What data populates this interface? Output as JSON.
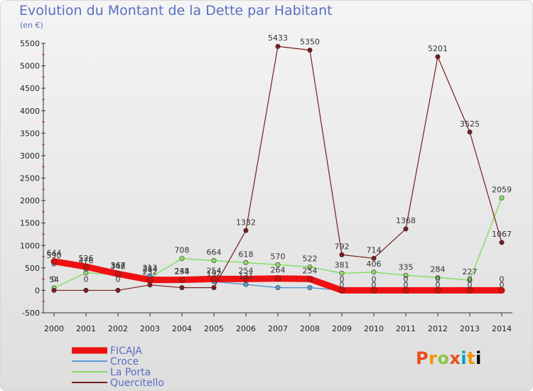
{
  "header": {
    "title": "Evolution du Montant de la Dette par Habitant",
    "subtitle": "(en €)"
  },
  "logo": {
    "text": "Proxiti"
  },
  "chart_data": {
    "type": "line",
    "title": "Evolution du Montant de la Dette par Habitant",
    "subtitle": "(en €)",
    "x": [
      "2000",
      "2001",
      "2002",
      "2003",
      "2004",
      "2005",
      "2006",
      "2007",
      "2008",
      "2009",
      "2010",
      "2011",
      "2012",
      "2013",
      "2014"
    ],
    "ylim": [
      -500,
      5500
    ],
    "yticks": [
      -500,
      0,
      500,
      1000,
      1500,
      2000,
      2500,
      3000,
      3500,
      4000,
      4500,
      5000,
      5500
    ],
    "ytick_labels": [
      "-500",
      "0",
      "500",
      "1000",
      "1500",
      "2000",
      "2500",
      "3000",
      "3500",
      "4000",
      "4500",
      "5000",
      "5500"
    ],
    "grid": false,
    "legend_position": "bottom-left",
    "series": [
      {
        "name": "FICAJA",
        "color": "#ee1111",
        "values": [
          644,
          526,
          367,
          232,
          234,
          254,
          254,
          264,
          254,
          0,
          0,
          0,
          0,
          0,
          0
        ],
        "labels": [
          "644",
          "526",
          "367",
          "232",
          "234",
          "254",
          "254",
          "264",
          "254",
          "0",
          "0",
          "0",
          "0",
          "0",
          "0"
        ]
      },
      {
        "name": "Croce",
        "color": "#5b9bd5",
        "values": [
          590,
          476,
          367,
          313,
          248,
          192,
          131,
          60,
          60,
          0,
          0,
          0,
          0,
          0,
          0
        ],
        "labels": [
          "590",
          "476",
          "367",
          "313",
          "248",
          "192",
          "131",
          "",
          "",
          "0",
          "0",
          "0",
          "0",
          "0",
          "0"
        ]
      },
      {
        "name": "La Porta",
        "color": "#88dd66",
        "values": [
          54,
          390,
          348,
          284,
          708,
          664,
          618,
          570,
          522,
          381,
          406,
          335,
          284,
          227,
          2059
        ],
        "labels": [
          "54",
          "",
          "348",
          "284",
          "708",
          "664",
          "618",
          "570",
          "522",
          "381",
          "406",
          "335",
          "284",
          "227",
          "2059"
        ]
      },
      {
        "name": "Quercitello",
        "color": "#7b1c1c",
        "values": [
          0,
          0,
          0,
          120,
          60,
          60,
          1332,
          5433,
          5350,
          792,
          714,
          1368,
          5201,
          3525,
          1067
        ],
        "labels": [
          "0",
          "0",
          "0",
          "",
          "",
          "",
          "1332",
          "5433",
          "5350",
          "792",
          "714",
          "1368",
          "5201",
          "3525",
          "1067"
        ]
      }
    ]
  }
}
